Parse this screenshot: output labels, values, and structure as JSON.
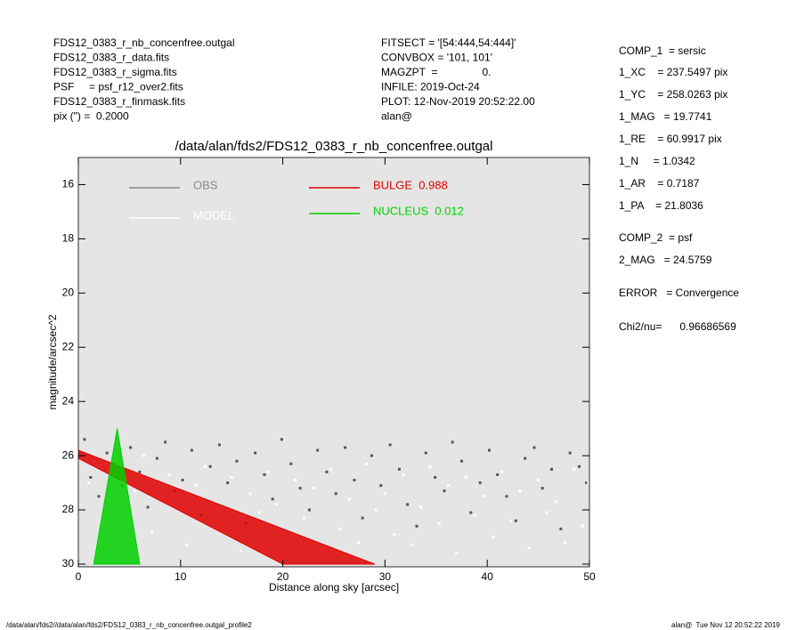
{
  "header": {
    "left": [
      "FDS12_0383_r_nb_concenfree.outgal",
      "FDS12_0383_r_data.fits",
      "FDS12_0383_r_sigma.fits",
      "PSF     = psf_r12_over2.fits",
      "FDS12_0383_r_finmask.fits",
      "pix (\") =  0.2000"
    ],
    "middle": [
      "FITSECT = '[54:444,54:444]'",
      "CONVBOX = '101, 101'",
      "MAGZPT  =               0.",
      "INFILE: 2019-Oct-24",
      "PLOT: 12-Nov-2019 20:52:22.00",
      "alan@"
    ]
  },
  "params": [
    "COMP_1  = sersic",
    "1_XC    = 237.5497 pix",
    "1_YC    = 258.0263 pix",
    "1_MAG   = 19.7741",
    "1_RE    = 60.9917 pix",
    "1_N     = 1.0342",
    "1_AR    = 0.7187",
    "1_PA    = 21.8036",
    "COMP_2  = psf",
    "2_MAG   = 24.5759",
    "ERROR   = Convergence",
    "Chi2/nu=      0.96686569"
  ],
  "footer": {
    "left": "/data/alan/fds2//data/alan/fds2/FDS12_0383_r_nb_concenfree.outgal_profile2",
    "right": "alan@  Tue Nov 12 20:52:22 2019"
  },
  "chart_data": {
    "type": "scatter",
    "title": "/data/alan/fds2/FDS12_0383_r_nb_concenfree.outgal",
    "x_label": "Distance along sky [arcsec]",
    "y_label": "magnitude/arcsec^2",
    "xlim": [
      0,
      50
    ],
    "xticks": [
      0,
      10,
      20,
      30,
      40,
      50
    ],
    "ylim": [
      30.1,
      15
    ],
    "yticks": [
      16,
      18,
      20,
      22,
      24,
      26,
      28,
      30
    ],
    "background": "#e5e5e5",
    "series": [
      {
        "name": "OBS",
        "type": "scatter",
        "color": "#555555",
        "x": [
          0.6,
          1.2,
          2.0,
          2.8,
          3.5,
          4.3,
          5.1,
          6.0,
          6.8,
          7.7,
          8.5,
          9.4,
          10.2,
          11.1,
          12.0,
          12.9,
          13.8,
          14.6,
          15.5,
          16.4,
          17.3,
          18.2,
          19.0,
          19.9,
          20.8,
          21.7,
          22.6,
          23.4,
          24.3,
          25.2,
          26.1,
          27.0,
          27.8,
          28.7,
          29.6,
          30.5,
          31.4,
          32.2,
          33.1,
          34.0,
          34.9,
          35.8,
          36.6,
          37.5,
          38.4,
          39.3,
          40.2,
          41.0,
          41.9,
          42.8,
          43.7,
          44.6,
          45.4,
          46.3,
          47.2,
          48.1,
          49.0,
          49.7
        ],
        "values": [
          25.4,
          26.8,
          27.5,
          25.9,
          26.3,
          27.1,
          25.7,
          26.6,
          27.9,
          26.1,
          25.5,
          27.3,
          26.9,
          25.8,
          28.2,
          26.4,
          25.6,
          27.0,
          26.2,
          28.5,
          25.9,
          26.7,
          27.6,
          25.4,
          26.3,
          27.2,
          28.0,
          25.8,
          26.6,
          27.4,
          25.7,
          26.9,
          28.3,
          26.0,
          27.1,
          25.6,
          26.5,
          27.8,
          28.6,
          25.9,
          26.8,
          27.3,
          25.5,
          26.2,
          28.1,
          27.0,
          25.8,
          26.7,
          27.5,
          28.4,
          26.1,
          25.7,
          27.2,
          26.5,
          28.7,
          25.9,
          26.4,
          27.0
        ]
      },
      {
        "name": "MODEL",
        "type": "scatter",
        "color": "#ffffff",
        "x": [
          1.0,
          1.6,
          2.4,
          3.2,
          3.9,
          4.7,
          5.5,
          6.4,
          7.2,
          8.1,
          8.9,
          9.8,
          10.6,
          11.5,
          12.4,
          13.3,
          14.2,
          15.0,
          15.9,
          16.8,
          17.7,
          18.6,
          19.4,
          20.3,
          21.2,
          22.1,
          23.0,
          23.8,
          24.7,
          25.6,
          26.5,
          27.4,
          28.2,
          29.1,
          30.0,
          30.9,
          31.8,
          32.6,
          33.5,
          34.4,
          35.3,
          36.2,
          37.0,
          37.9,
          38.8,
          39.7,
          40.6,
          41.4,
          42.3,
          43.2,
          44.1,
          45.0,
          45.8,
          46.7,
          47.6,
          48.5,
          49.3,
          49.9
        ],
        "values": [
          27.0,
          26.2,
          28.4,
          27.7,
          26.5,
          29.1,
          27.3,
          26.0,
          28.8,
          27.5,
          26.7,
          28.0,
          29.3,
          27.1,
          26.4,
          28.6,
          27.9,
          26.8,
          29.5,
          27.4,
          28.1,
          26.6,
          27.8,
          29.0,
          26.9,
          28.3,
          27.2,
          29.4,
          26.5,
          28.7,
          27.6,
          29.2,
          26.3,
          28.0,
          27.4,
          28.9,
          26.7,
          29.3,
          27.9,
          26.4,
          28.5,
          27.1,
          29.6,
          26.8,
          28.2,
          27.5,
          29.0,
          26.6,
          28.4,
          27.3,
          29.4,
          26.9,
          28.1,
          27.7,
          29.2,
          26.5,
          28.6,
          27.0
        ]
      },
      {
        "name": "BULGE  0.988",
        "type": "area",
        "color": "#e00000",
        "x": [
          0,
          29,
          20,
          0
        ],
        "values": [
          25.8,
          30,
          30,
          26.1
        ]
      },
      {
        "name": "NUCLEUS  0.012",
        "type": "area",
        "color": "#00d000",
        "x": [
          1.5,
          3.8,
          6
        ],
        "values": [
          30,
          25,
          30
        ]
      }
    ]
  }
}
